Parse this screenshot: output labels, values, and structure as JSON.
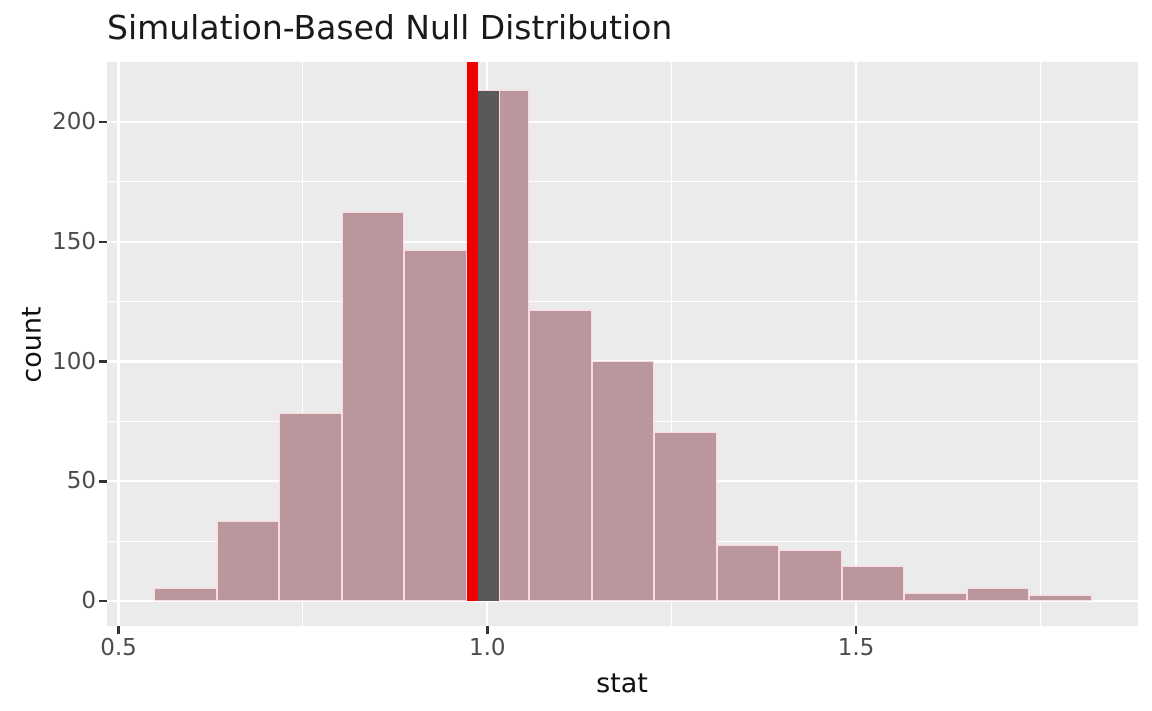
{
  "chart_data": {
    "type": "bar",
    "subtype": "histogram",
    "title": "Simulation-Based Null Distribution",
    "xlabel": "stat",
    "ylabel": "count",
    "x_ticks": [
      {
        "value": 0.5,
        "label": "0.5"
      },
      {
        "value": 1.0,
        "label": "1.0"
      },
      {
        "value": 1.5,
        "label": "1.5"
      }
    ],
    "x_minor_gridlines": [
      0.75,
      1.25,
      1.75
    ],
    "y_ticks": [
      {
        "value": 0,
        "label": "0"
      },
      {
        "value": 50,
        "label": "50"
      },
      {
        "value": 100,
        "label": "100"
      },
      {
        "value": 150,
        "label": "150"
      },
      {
        "value": 200,
        "label": "200"
      }
    ],
    "y_minor_gridlines": [
      25,
      75,
      125,
      175
    ],
    "xlim": [
      0.4844,
      1.8838
    ],
    "ylim": [
      -10.65,
      224.5
    ],
    "grid": true,
    "legend": "none",
    "bins": [
      {
        "x0": 0.5485,
        "x1": 0.6333,
        "count": 5
      },
      {
        "x0": 0.6333,
        "x1": 0.718,
        "count": 33
      },
      {
        "x0": 0.718,
        "x1": 0.8028,
        "count": 78
      },
      {
        "x0": 0.8028,
        "x1": 0.8875,
        "count": 162
      },
      {
        "x0": 0.8875,
        "x1": 0.9723,
        "count": 146
      },
      {
        "x0": 0.9723,
        "x1": 1.057,
        "count": 213
      },
      {
        "x0": 1.057,
        "x1": 1.1418,
        "count": 121
      },
      {
        "x0": 1.1418,
        "x1": 1.2265,
        "count": 100
      },
      {
        "x0": 1.2265,
        "x1": 1.3113,
        "count": 70
      },
      {
        "x0": 1.3113,
        "x1": 1.396,
        "count": 23
      },
      {
        "x0": 1.396,
        "x1": 1.4808,
        "count": 21
      },
      {
        "x0": 1.4808,
        "x1": 1.5655,
        "count": 14
      },
      {
        "x0": 1.5655,
        "x1": 1.6503,
        "count": 3
      },
      {
        "x0": 1.6503,
        "x1": 1.735,
        "count": 5
      },
      {
        "x0": 1.735,
        "x1": 1.8198,
        "count": 2
      }
    ],
    "observed_stat_line": {
      "x": 0.98
    },
    "unshaded_dark_segment": {
      "x0": 0.9868,
      "x1": 1.0159,
      "count": 213
    },
    "colors": {
      "panel_background": "#EBEBEB",
      "gridline": "#FFFFFF",
      "shaded_bar_fill": "#BC969D",
      "shaded_bar_border": "#FFD9E0",
      "dark_bar_fill": "#595959",
      "dark_bar_edge": "#F2DFE4",
      "observed_line": "#EE0000",
      "tick_label": "#4D4D4D",
      "tick_mark": "#333333"
    }
  }
}
